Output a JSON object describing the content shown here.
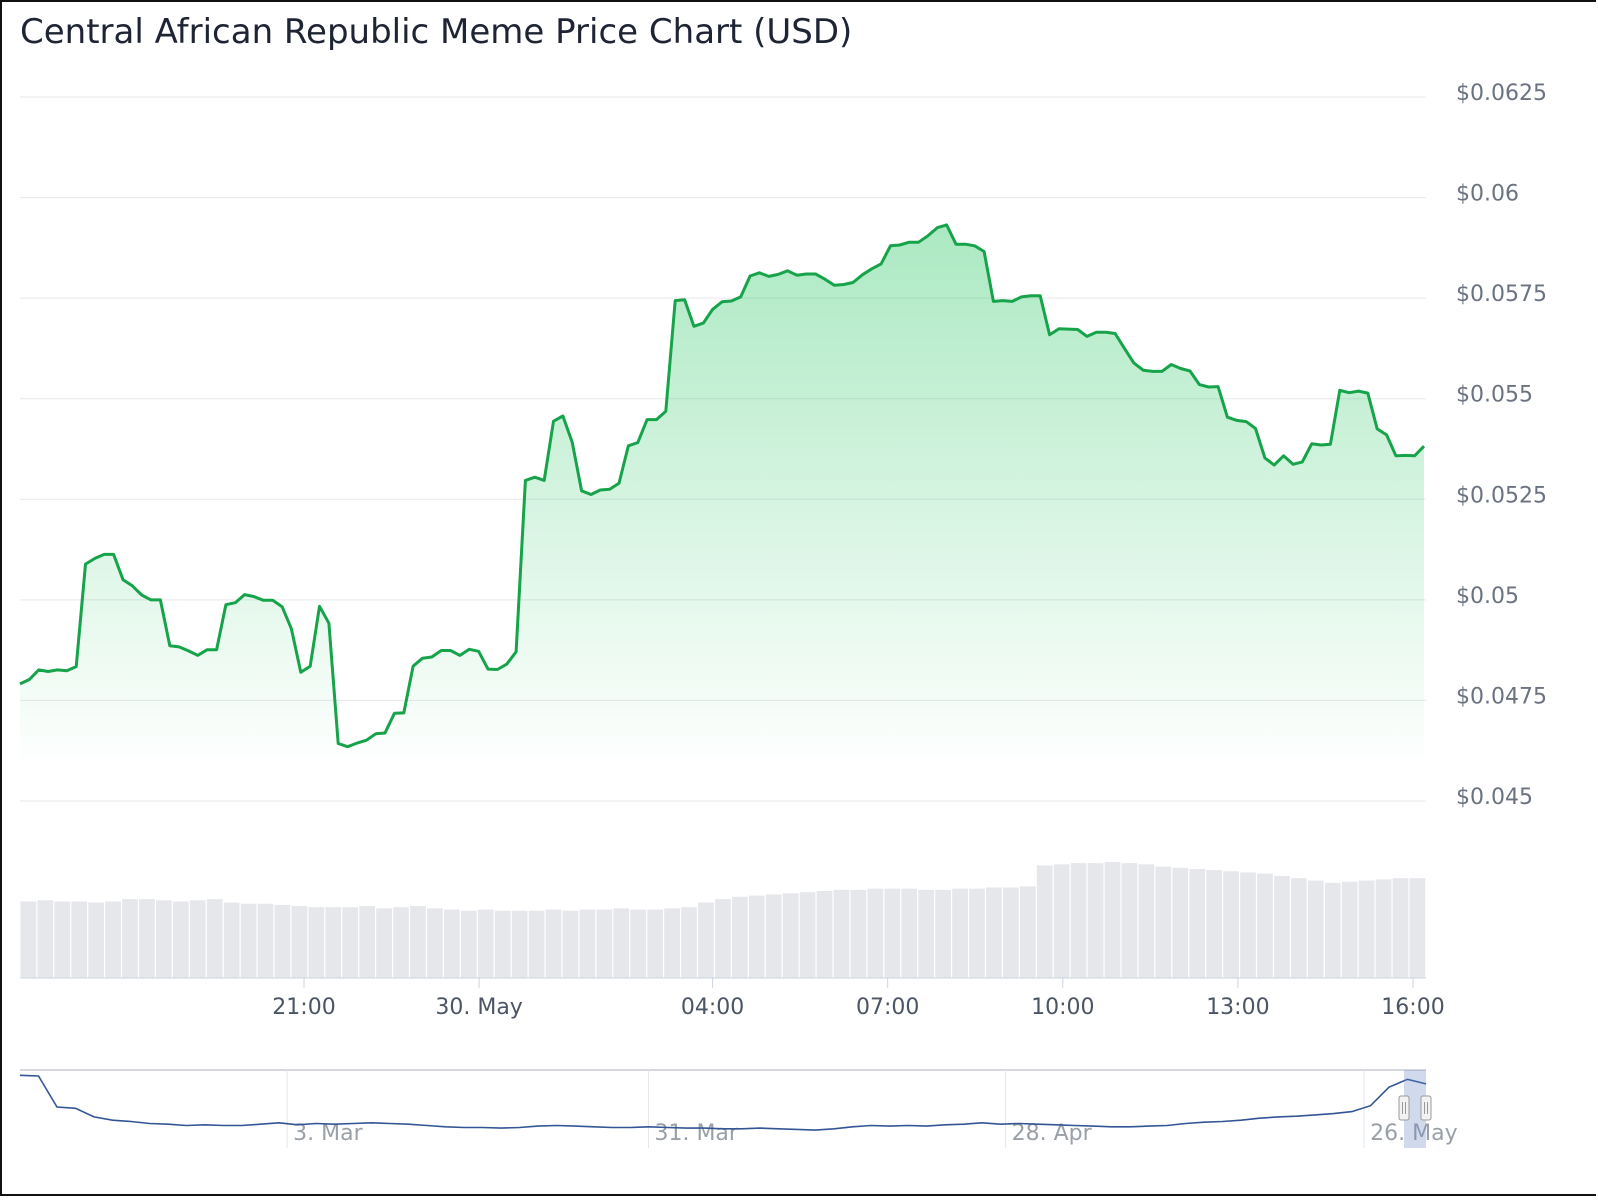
{
  "title": "Central African Republic Meme Price Chart (USD)",
  "chart_data": {
    "type": "line",
    "title": "Central African Republic Meme Price Chart (USD)",
    "currency": "USD",
    "line_color": "#16a34a",
    "fill_color": "#22c55e",
    "volume_color": "#e5e7eb",
    "navigator_color": "#335596",
    "y_ticks": [
      {
        "value": 0.045,
        "label": "$0.045"
      },
      {
        "value": 0.0475,
        "label": "$0.0475"
      },
      {
        "value": 0.05,
        "label": "$0.05"
      },
      {
        "value": 0.0525,
        "label": "$0.0525"
      },
      {
        "value": 0.055,
        "label": "$0.055"
      },
      {
        "value": 0.0575,
        "label": "$0.0575"
      },
      {
        "value": 0.06,
        "label": "$0.06"
      },
      {
        "value": 0.0625,
        "label": "$0.0625"
      }
    ],
    "ylim": [
      0.045,
      0.0625
    ],
    "x_range_hours": [
      17.9,
      40.8
    ],
    "x_ticks": [
      {
        "hour": 21,
        "label": "21:00"
      },
      {
        "hour": 24,
        "label": "30. May"
      },
      {
        "hour": 28,
        "label": "04:00"
      },
      {
        "hour": 31,
        "label": "07:00"
      },
      {
        "hour": 34,
        "label": "10:00"
      },
      {
        "hour": 37,
        "label": "13:00"
      },
      {
        "hour": 40,
        "label": "16:00"
      }
    ],
    "price_series": [
      [
        17.9,
        0.04791
      ],
      [
        18.1,
        0.04802
      ],
      [
        18.25,
        0.04826
      ],
      [
        18.5,
        0.04822
      ],
      [
        18.8,
        0.04826
      ],
      [
        19.0,
        0.04824
      ],
      [
        19.2,
        0.04834
      ],
      [
        19.25,
        0.05089
      ],
      [
        19.4,
        0.05103
      ],
      [
        19.55,
        0.05113
      ],
      [
        19.65,
        0.05113
      ],
      [
        19.8,
        0.0505
      ],
      [
        19.95,
        0.05035
      ],
      [
        20.1,
        0.05012
      ],
      [
        20.3,
        0.05
      ],
      [
        20.4,
        0.05
      ],
      [
        20.5,
        0.04886
      ],
      [
        20.75,
        0.04883
      ],
      [
        20.95,
        0.04873
      ],
      [
        21.1,
        0.04862
      ],
      [
        21.2,
        0.04876
      ],
      [
        21.35,
        0.04876
      ],
      [
        21.45,
        0.04988
      ],
      [
        21.6,
        0.04993
      ],
      [
        21.75,
        0.05013
      ],
      [
        22.1,
        0.05008
      ],
      [
        22.2,
        0.04999
      ],
      [
        22.5,
        0.04999
      ],
      [
        22.65,
        0.04983
      ],
      [
        22.8,
        0.04928
      ],
      [
        22.88,
        0.0482
      ],
      [
        22.97,
        0.04835
      ],
      [
        23.05,
        0.04984
      ],
      [
        23.15,
        0.04942
      ],
      [
        23.25,
        0.04643
      ],
      [
        23.4,
        0.04635
      ],
      [
        23.6,
        0.04644
      ],
      [
        23.8,
        0.04651
      ],
      [
        24.0,
        0.04667
      ],
      [
        24.3,
        0.04669
      ],
      [
        24.35,
        0.04718
      ],
      [
        24.7,
        0.04719
      ],
      [
        24.8,
        0.04835
      ],
      [
        25.0,
        0.04855
      ],
      [
        25.25,
        0.04858
      ],
      [
        25.45,
        0.04874
      ],
      [
        25.65,
        0.04874
      ],
      [
        25.75,
        0.04862
      ],
      [
        25.9,
        0.04877
      ],
      [
        26.0,
        0.04872
      ],
      [
        26.1,
        0.04828
      ],
      [
        26.45,
        0.04827
      ],
      [
        26.55,
        0.0484
      ],
      [
        26.65,
        0.04871
      ],
      [
        26.75,
        0.05297
      ],
      [
        26.9,
        0.05305
      ],
      [
        27.0,
        0.05297
      ],
      [
        27.15,
        0.05444
      ],
      [
        27.25,
        0.05457
      ],
      [
        27.35,
        0.05392
      ],
      [
        27.5,
        0.05271
      ],
      [
        27.6,
        0.05262
      ],
      [
        27.7,
        0.05273
      ],
      [
        27.95,
        0.05275
      ],
      [
        28.1,
        0.0529
      ],
      [
        28.2,
        0.05383
      ],
      [
        28.3,
        0.05391
      ],
      [
        28.4,
        0.05448
      ],
      [
        28.6,
        0.05448
      ],
      [
        28.7,
        0.05469
      ],
      [
        28.8,
        0.05744
      ],
      [
        28.9,
        0.05746
      ],
      [
        29.0,
        0.0568
      ],
      [
        29.1,
        0.05688
      ],
      [
        29.2,
        0.05722
      ],
      [
        29.45,
        0.05741
      ],
      [
        29.65,
        0.05743
      ],
      [
        29.85,
        0.05753
      ],
      [
        30.0,
        0.05805
      ],
      [
        30.2,
        0.05813
      ],
      [
        30.35,
        0.05804
      ],
      [
        30.6,
        0.05809
      ],
      [
        30.75,
        0.05818
      ],
      [
        30.9,
        0.05807
      ],
      [
        31.1,
        0.0581
      ],
      [
        31.3,
        0.0581
      ],
      [
        31.45,
        0.05797
      ],
      [
        31.6,
        0.05782
      ],
      [
        31.75,
        0.05784
      ],
      [
        31.9,
        0.05789
      ],
      [
        32.0,
        0.05808
      ],
      [
        32.2,
        0.05823
      ],
      [
        32.35,
        0.05835
      ],
      [
        32.5,
        0.0588
      ],
      [
        32.7,
        0.05882
      ],
      [
        32.85,
        0.05889
      ],
      [
        33.0,
        0.05889
      ],
      [
        33.15,
        0.05905
      ],
      [
        33.3,
        0.05925
      ],
      [
        33.45,
        0.05932
      ],
      [
        33.55,
        0.05884
      ],
      [
        33.8,
        0.05884
      ],
      [
        34.0,
        0.0588
      ],
      [
        34.15,
        0.05866
      ],
      [
        34.25,
        0.05742
      ],
      [
        34.5,
        0.05744
      ],
      [
        34.75,
        0.05742
      ],
      [
        34.9,
        0.05753
      ],
      [
        35.1,
        0.05756
      ],
      [
        35.25,
        0.05756
      ],
      [
        35.35,
        0.05659
      ],
      [
        35.5,
        0.05674
      ],
      [
        35.7,
        0.05673
      ],
      [
        35.9,
        0.05672
      ],
      [
        36.0,
        0.05655
      ],
      [
        36.15,
        0.05665
      ],
      [
        36.5,
        0.05665
      ],
      [
        36.75,
        0.05662
      ],
      [
        36.85,
        0.05625
      ],
      [
        37.0,
        0.05589
      ],
      [
        37.15,
        0.05571
      ],
      [
        37.5,
        0.05568
      ],
      [
        37.7,
        0.05568
      ],
      [
        37.85,
        0.05585
      ],
      [
        38.0,
        0.05575
      ],
      [
        38.15,
        0.05569
      ],
      [
        38.3,
        0.05535
      ],
      [
        38.55,
        0.05529
      ],
      [
        38.7,
        0.0553
      ],
      [
        38.8,
        0.05454
      ],
      [
        39.0,
        0.05446
      ],
      [
        39.2,
        0.05443
      ],
      [
        39.35,
        0.05426
      ],
      [
        39.5,
        0.05353
      ],
      [
        39.7,
        0.05335
      ],
      [
        39.85,
        0.05358
      ],
      [
        39.95,
        0.05337
      ],
      [
        40.05,
        0.05343
      ],
      [
        40.2,
        0.05388
      ],
      [
        40.4,
        0.05385
      ],
      [
        40.55,
        0.05387
      ],
      [
        40.7,
        0.05521
      ],
      [
        40.85,
        0.05515
      ],
      [
        41.0,
        0.05519
      ],
      [
        41.1,
        0.05514
      ],
      [
        41.2,
        0.05425
      ],
      [
        41.3,
        0.0541
      ],
      [
        41.4,
        0.05358
      ],
      [
        41.6,
        0.05359
      ],
      [
        41.75,
        0.05358
      ],
      [
        41.85,
        0.05382
      ]
    ],
    "volume_relative": [
      0.66,
      0.67,
      0.66,
      0.66,
      0.65,
      0.66,
      0.68,
      0.68,
      0.67,
      0.66,
      0.67,
      0.68,
      0.65,
      0.64,
      0.64,
      0.63,
      0.62,
      0.61,
      0.61,
      0.61,
      0.62,
      0.6,
      0.61,
      0.62,
      0.6,
      0.59,
      0.58,
      0.59,
      0.58,
      0.58,
      0.58,
      0.59,
      0.58,
      0.59,
      0.59,
      0.6,
      0.59,
      0.59,
      0.6,
      0.61,
      0.65,
      0.68,
      0.7,
      0.71,
      0.72,
      0.73,
      0.74,
      0.75,
      0.76,
      0.76,
      0.77,
      0.77,
      0.77,
      0.76,
      0.76,
      0.77,
      0.77,
      0.78,
      0.78,
      0.79,
      0.97,
      0.98,
      0.99,
      0.99,
      1.0,
      0.99,
      0.98,
      0.96,
      0.95,
      0.94,
      0.93,
      0.92,
      0.91,
      0.9,
      0.88,
      0.86,
      0.84,
      0.82,
      0.83,
      0.84,
      0.85,
      0.86,
      0.86
    ],
    "navigator": {
      "labels": [
        {
          "pos": 0.19,
          "label": "3. Mar"
        },
        {
          "pos": 0.447,
          "label": "31. Mar"
        },
        {
          "pos": 0.701,
          "label": "28. Apr"
        },
        {
          "pos": 0.956,
          "label": "26. May"
        }
      ],
      "series_relative": [
        0.98,
        0.97,
        0.5,
        0.48,
        0.35,
        0.3,
        0.28,
        0.25,
        0.24,
        0.22,
        0.23,
        0.22,
        0.22,
        0.24,
        0.26,
        0.23,
        0.25,
        0.24,
        0.25,
        0.26,
        0.25,
        0.24,
        0.22,
        0.2,
        0.19,
        0.19,
        0.18,
        0.19,
        0.21,
        0.22,
        0.21,
        0.2,
        0.19,
        0.19,
        0.2,
        0.19,
        0.18,
        0.18,
        0.17,
        0.17,
        0.18,
        0.17,
        0.16,
        0.15,
        0.17,
        0.2,
        0.22,
        0.21,
        0.22,
        0.21,
        0.23,
        0.24,
        0.26,
        0.24,
        0.25,
        0.24,
        0.23,
        0.22,
        0.21,
        0.2,
        0.2,
        0.21,
        0.22,
        0.25,
        0.27,
        0.28,
        0.3,
        0.33,
        0.35,
        0.36,
        0.38,
        0.4,
        0.43,
        0.52,
        0.8,
        0.92,
        0.85
      ]
    }
  }
}
